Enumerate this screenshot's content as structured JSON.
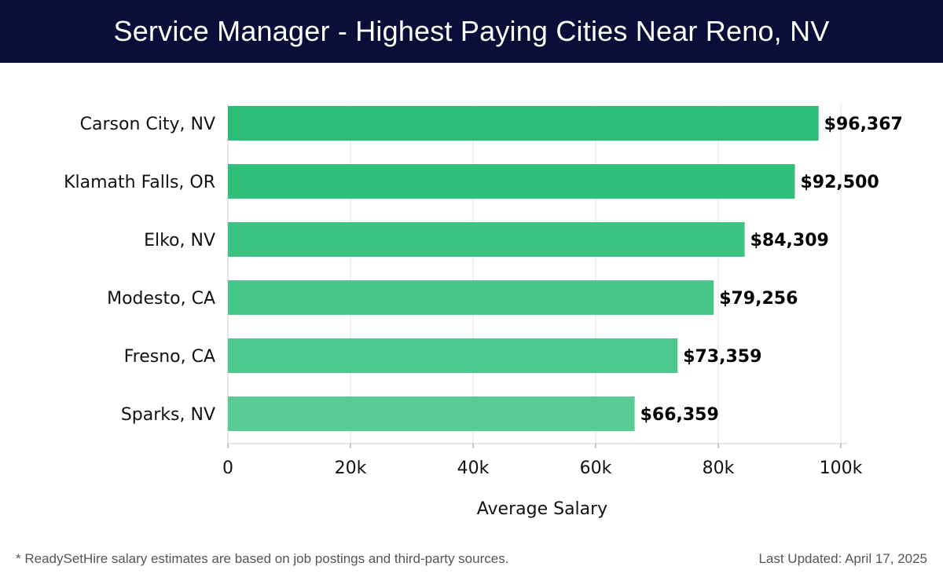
{
  "header": {
    "title": "Service Manager - Highest Paying Cities Near Reno, NV"
  },
  "chart_data": {
    "type": "bar",
    "orientation": "horizontal",
    "categories": [
      "Carson City, NV",
      "Klamath Falls, OR",
      "Elko, NV",
      "Modesto, CA",
      "Fresno, CA",
      "Sparks, NV"
    ],
    "values": [
      96367,
      92500,
      84309,
      79256,
      73359,
      66359
    ],
    "value_labels": [
      "$96,367",
      "$92,500",
      "$84,309",
      "$79,256",
      "$73,359",
      "$66,359"
    ],
    "xlabel": "Average Salary",
    "ylabel": "",
    "xlim": [
      0,
      100000
    ],
    "ticks": [
      0,
      20000,
      40000,
      60000,
      80000,
      100000
    ],
    "tick_labels": [
      "0",
      "20k",
      "40k",
      "60k",
      "80k",
      "100k"
    ],
    "grid": true,
    "bar_colors": [
      "#2bbd75",
      "#31c07a",
      "#3ec482",
      "#46c788",
      "#4ec98d",
      "#58cc93"
    ]
  },
  "footer": {
    "note": "* ReadySetHire salary estimates are based on job postings and third-party sources.",
    "updated": "Last Updated: April 17, 2025"
  }
}
